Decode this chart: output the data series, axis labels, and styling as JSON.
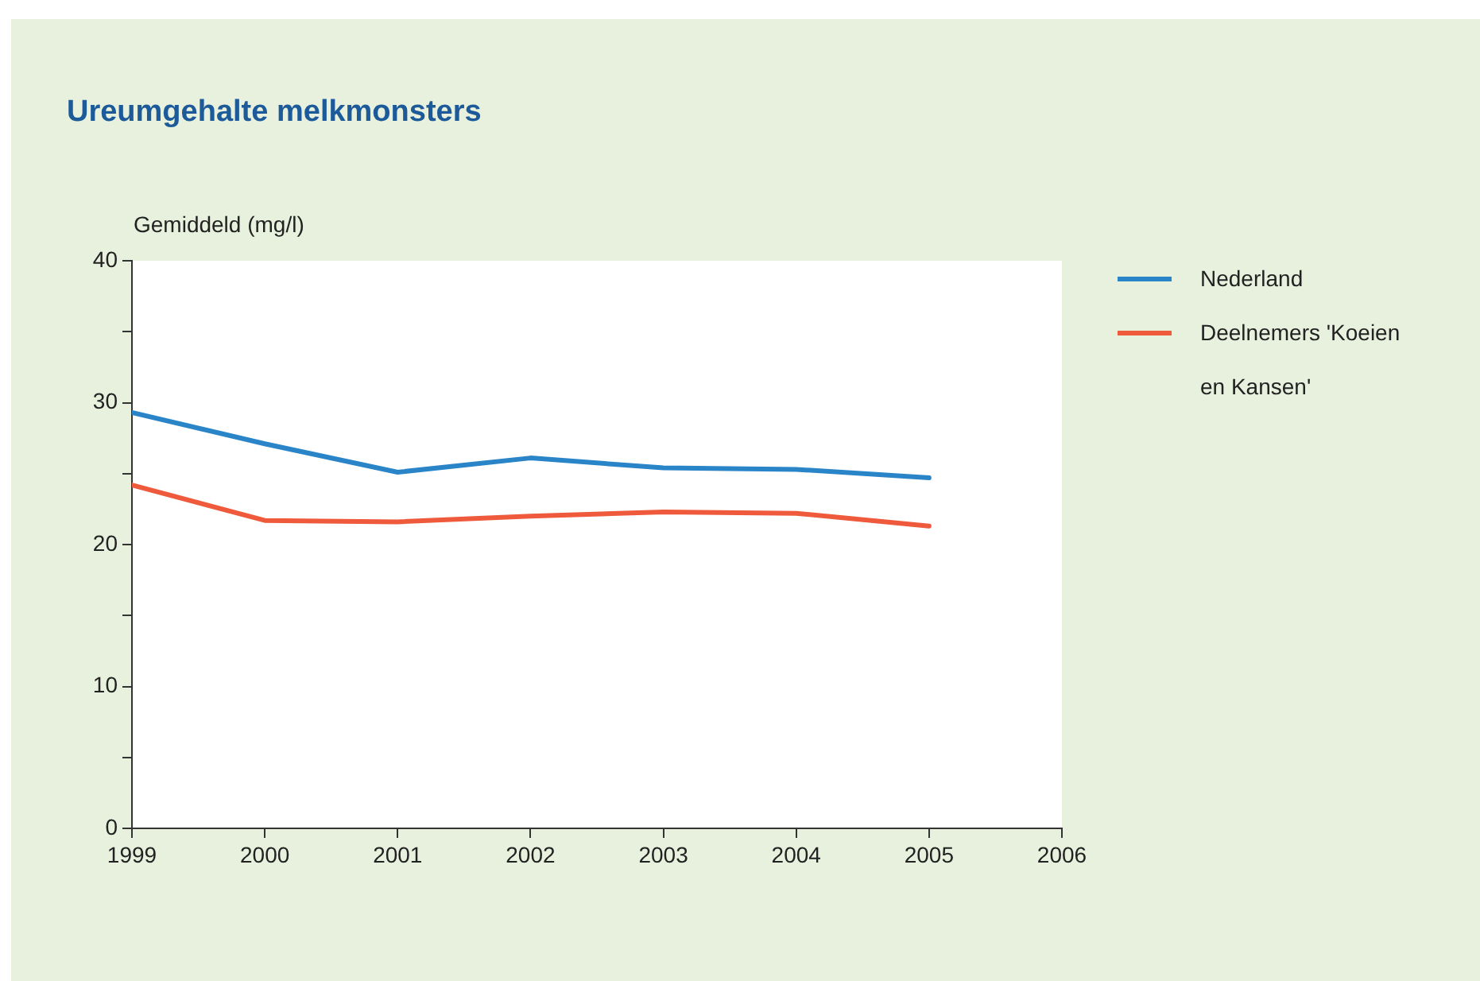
{
  "chart_data": {
    "type": "line",
    "title": "Ureumgehalte melkmonsters",
    "ylabel": "Gemiddeld (mg/l)",
    "x": [
      1999,
      2000,
      2001,
      2002,
      2003,
      2004,
      2005
    ],
    "series": [
      {
        "name": "Nederland",
        "color": "#2a84c8",
        "values": [
          29.3,
          27.1,
          25.1,
          26.1,
          25.4,
          25.3,
          24.7
        ]
      },
      {
        "name": "Deelnemers 'Koeien en Kansen'",
        "color": "#ef5a3c",
        "values": [
          24.2,
          21.7,
          21.6,
          22.0,
          22.3,
          22.2,
          21.3
        ]
      }
    ],
    "xlim": [
      1999,
      2006
    ],
    "xticks": [
      1999,
      2000,
      2001,
      2002,
      2003,
      2004,
      2005,
      2006
    ],
    "ylim": [
      0,
      40
    ],
    "yticks": [
      0,
      {
        "value": 5,
        "label": null
      },
      10,
      {
        "value": 15,
        "label": null
      },
      20,
      {
        "value": 25,
        "label": null
      },
      30,
      {
        "value": 35,
        "label": null
      },
      40
    ],
    "grid": false,
    "legend": "right",
    "marker": "none",
    "line_style": "solid"
  }
}
